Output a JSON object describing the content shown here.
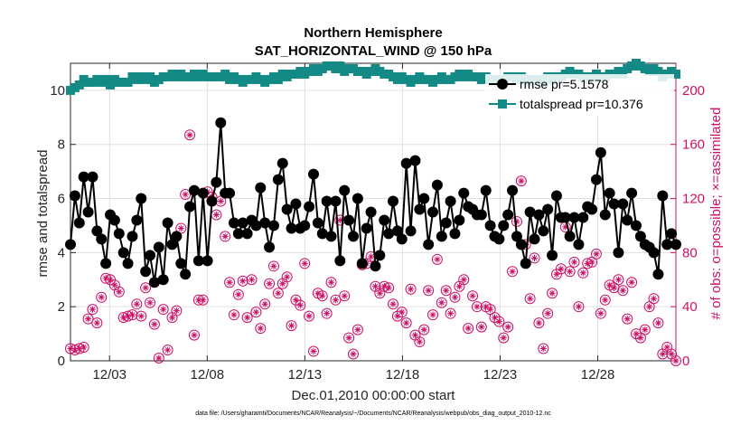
{
  "chart_data": {
    "type": "line",
    "title": "Northern Hemisphere",
    "subtitle": "SAT_HORIZONTAL_WIND @ 150 hPa",
    "xlabel": "Dec.01,2010 00:00:00 start",
    "ylabel_left": "rmse and totalspread",
    "ylabel_right": "# of obs: o=possible; ×=assimilated",
    "footnote": "data file: /Users/gharamti/Documents/NCAR/Reanalysis/~/Documents/NCAR/Reanalysis/webpub/obs_diag_output_2010-12.nc",
    "x_range": [
      1,
      32
    ],
    "ylim_left": [
      0,
      11
    ],
    "ylim_right": [
      0,
      220
    ],
    "x_ticks": [
      {
        "x": 3,
        "label": "12/03"
      },
      {
        "x": 8,
        "label": "12/08"
      },
      {
        "x": 13,
        "label": "12/13"
      },
      {
        "x": 18,
        "label": "12/18"
      },
      {
        "x": 23,
        "label": "12/23"
      },
      {
        "x": 28,
        "label": "12/28"
      }
    ],
    "y_ticks_left": [
      "0",
      "2",
      "4",
      "6",
      "8",
      "10"
    ],
    "y_ticks_right": [
      "0",
      "40",
      "80",
      "120",
      "160",
      "200"
    ],
    "grid": true,
    "legend_position": "top-right",
    "colors": {
      "rmse": "#000000",
      "totalspread": "#138a86",
      "obs": "#cc1066",
      "axis": "#262626",
      "grid": "#e0e0e0"
    },
    "series": [
      {
        "name": "rmse",
        "label": "rmse pr=5.1578",
        "axis": "left",
        "values": [
          4.3,
          6.1,
          5.1,
          6.8,
          5.5,
          6.8,
          4.8,
          4.5,
          3.6,
          5.4,
          5.2,
          4.7,
          4.0,
          3.6,
          4.6,
          5.2,
          6.0,
          3.3,
          3.9,
          2.9,
          4.2,
          3.0,
          5.1,
          4.3,
          4.6,
          3.6,
          3.2,
          5.7,
          6.3,
          3.7,
          6.2,
          3.7,
          5.9,
          6.6,
          8.8,
          6.2,
          6.2,
          5.1,
          4.7,
          5.1,
          4.7,
          5.2,
          5.0,
          6.4,
          5.1,
          4.2,
          5.0,
          6.7,
          7.3,
          5.6,
          4.9,
          5.8,
          4.9,
          5.0,
          5.7,
          6.9,
          5.1,
          4.7,
          5.9,
          4.6,
          5.9,
          3.7,
          6.3,
          5.2,
          4.6,
          6.0,
          3.6,
          4.9,
          5.5,
          3.5,
          3.9,
          5.2,
          4.7,
          5.9,
          4.8,
          4.5,
          7.3,
          4.8,
          7.4,
          5.6,
          6.0,
          4.3,
          5.5,
          6.5,
          4.6,
          5.1,
          5.9,
          4.7,
          5.2,
          6.2,
          5.7,
          5.6,
          5.4,
          5.4,
          6.3,
          5.0,
          4.6,
          4.5,
          5.0,
          5.4,
          6.3,
          4.6,
          4.3,
          3.6,
          5.5,
          4.5,
          5.4,
          4.8,
          5.6,
          3.9,
          6.1,
          5.3,
          5.3,
          4.6,
          5.3,
          4.3,
          5.3,
          5.7,
          5.6,
          6.7,
          7.7,
          5.4,
          6.2,
          5.8,
          4.0,
          5.8,
          5.2,
          6.2,
          5.0,
          4.6,
          4.3,
          4.2,
          4.0,
          3.2,
          6.1,
          4.3,
          4.7,
          4.3
        ]
      },
      {
        "name": "totalspread",
        "label": "totalspread pr=10.376",
        "axis": "left",
        "values": [
          10.0,
          10.1,
          10.2,
          10.4,
          10.3,
          10.3,
          10.4,
          10.3,
          10.4,
          10.2,
          10.4,
          10.3,
          10.3,
          10.3,
          10.5,
          10.4,
          10.5,
          10.4,
          10.5,
          10.3,
          10.4,
          10.5,
          10.5,
          10.6,
          10.5,
          10.6,
          10.5,
          10.5,
          10.6,
          10.5,
          10.6,
          10.5,
          10.5,
          10.5,
          10.5,
          10.6,
          10.4,
          10.5,
          10.4,
          10.3,
          10.4,
          10.4,
          10.5,
          10.4,
          10.3,
          10.4,
          10.5,
          10.4,
          10.6,
          10.5,
          10.6,
          10.6,
          10.7,
          10.6,
          10.7,
          10.8,
          10.7,
          10.8,
          10.9,
          10.9,
          10.8,
          10.9,
          10.7,
          10.8,
          10.8,
          10.7,
          10.7,
          10.6,
          10.7,
          10.8,
          10.7,
          10.6,
          10.6,
          10.5,
          10.4,
          10.5,
          10.4,
          10.3,
          10.4,
          10.5,
          10.4,
          10.4,
          10.3,
          10.4,
          10.5,
          10.4,
          10.4,
          10.5,
          10.6,
          10.5,
          10.6,
          10.5,
          10.5,
          10.4,
          10.5,
          10.4,
          10.4,
          10.3,
          10.4,
          10.5,
          10.5,
          10.4,
          10.5,
          10.4,
          10.3,
          10.4,
          10.4,
          10.3,
          10.5,
          10.4,
          10.5,
          10.5,
          10.6,
          10.7,
          10.6,
          10.6,
          10.5,
          10.4,
          10.5,
          10.6,
          10.5,
          10.5,
          10.6,
          10.6,
          10.7,
          10.6,
          10.8,
          10.9,
          11.0,
          10.9,
          10.8,
          10.7,
          10.8,
          10.7,
          10.5,
          10.6,
          10.7,
          10.6
        ]
      },
      {
        "name": "obs",
        "label": "# of obs",
        "axis": "right",
        "values": [
          9,
          8,
          9,
          10,
          31,
          38,
          28,
          47,
          61,
          60,
          56,
          51,
          32,
          33,
          34,
          42,
          33,
          54,
          43,
          27,
          2,
          38,
          8,
          32,
          37,
          98,
          123,
          167,
          19,
          45,
          45,
          125,
          121,
          108,
          118,
          92,
          58,
          34,
          49,
          59,
          32,
          60,
          36,
          24,
          42,
          57,
          70,
          50,
          57,
          62,
          26,
          45,
          41,
          72,
          33,
          7,
          50,
          48,
          35,
          58,
          45,
          104,
          48,
          17,
          5,
          23,
          71,
          72,
          77,
          55,
          50,
          55,
          54,
          42,
          33,
          36,
          28,
          53,
          19,
          14,
          23,
          52,
          34,
          75,
          43,
          52,
          35,
          47,
          55,
          60,
          24,
          48,
          40,
          25,
          40,
          38,
          32,
          29,
          17,
          25,
          66,
          103,
          133,
          86,
          46,
          76,
          28,
          9,
          35,
          50,
          64,
          68,
          99,
          66,
          73,
          40,
          65,
          72,
          73,
          79,
          35,
          45,
          56,
          54,
          60,
          52,
          31,
          58,
          20,
          17,
          23,
          40,
          46,
          28,
          5,
          10,
          5,
          0
        ]
      }
    ]
  }
}
